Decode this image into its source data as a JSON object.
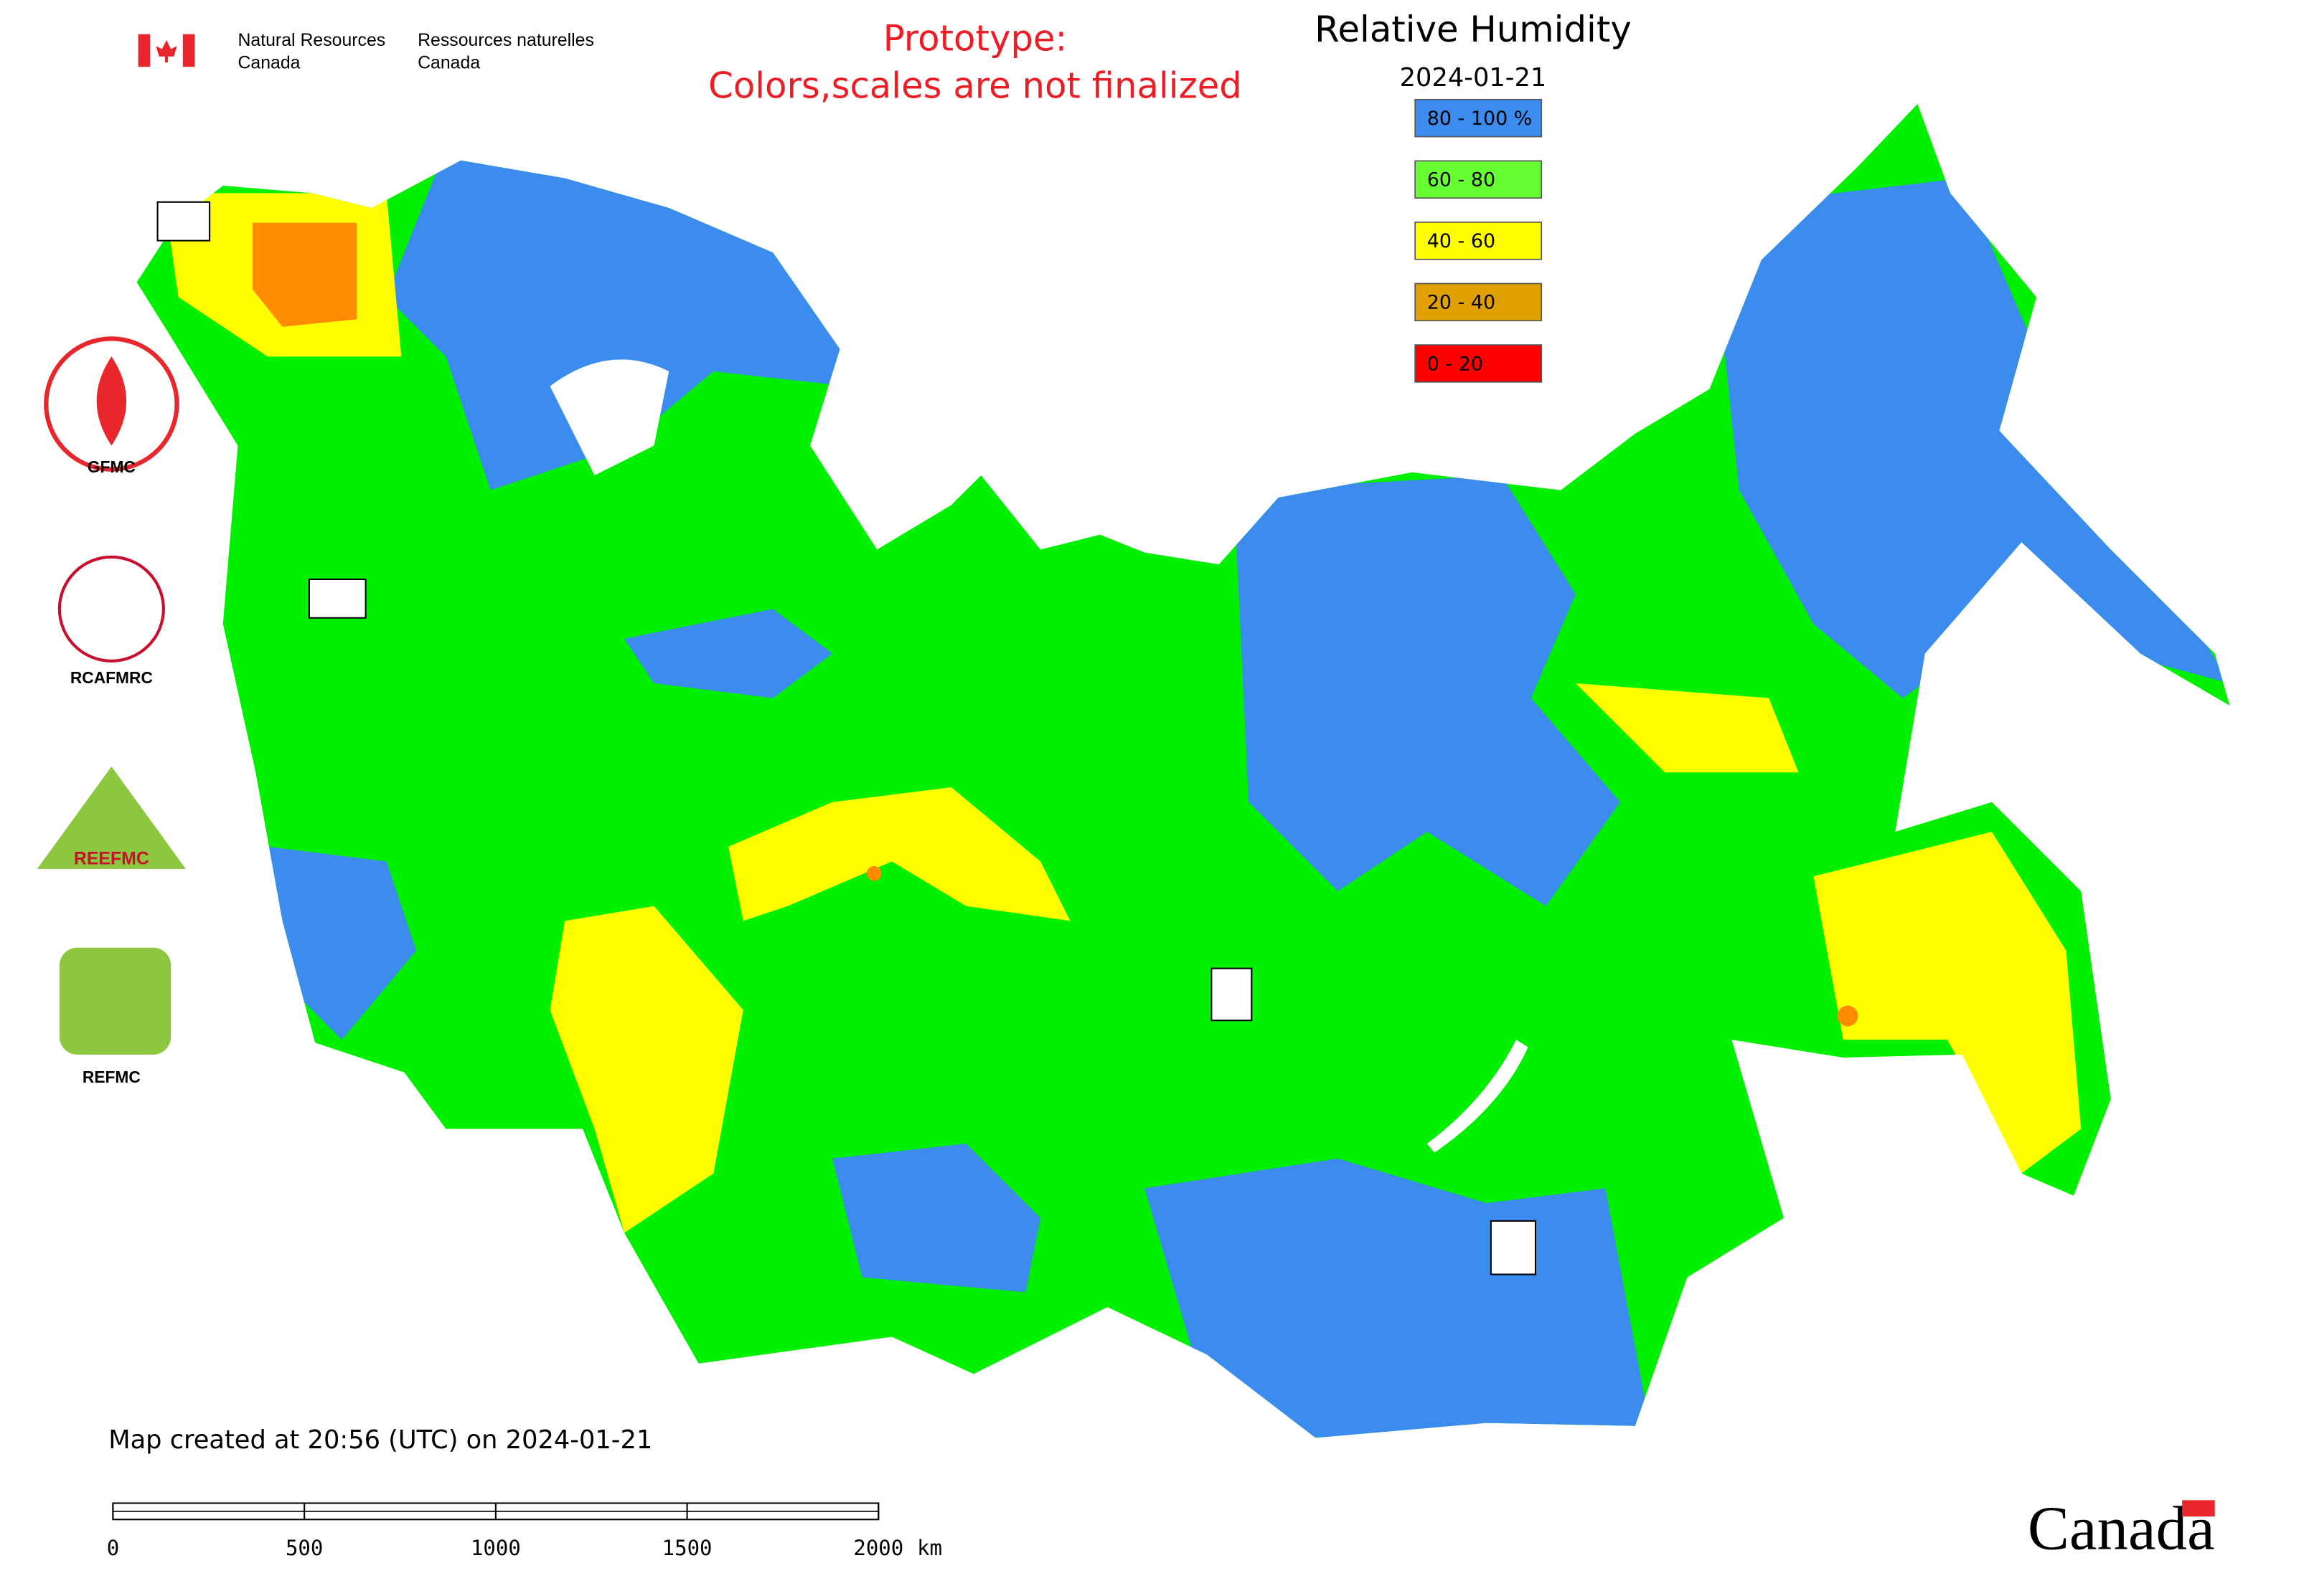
{
  "header": {
    "agency_en": [
      "Natural Resources",
      "Canada"
    ],
    "agency_fr": [
      "Ressources naturelles",
      "Canada"
    ],
    "notice": [
      "Prototype:",
      "Colors,scales are not finalized"
    ]
  },
  "map": {
    "title": "Relative Humidity",
    "date": "2024-01-21",
    "legend": [
      {
        "label": "80 - 100 %",
        "color": "#3c8cf0"
      },
      {
        "label": "60 - 80",
        "color": "#66ff33"
      },
      {
        "label": "40 - 60",
        "color": "#ffff00"
      },
      {
        "label": "20 - 40",
        "color": "#e0a000"
      },
      {
        "label": "0 - 20",
        "color": "#ff0000"
      }
    ]
  },
  "logos": [
    "GFMC",
    "RCAFMRC",
    "REEFMC",
    "REFMC"
  ],
  "footer": "Map created at 20:56 (UTC) on 2024-01-21",
  "scale_bar": {
    "ticks": [
      "0",
      "500",
      "1000",
      "1500",
      "2000"
    ],
    "unit": "km"
  },
  "wordmark": "Canada"
}
